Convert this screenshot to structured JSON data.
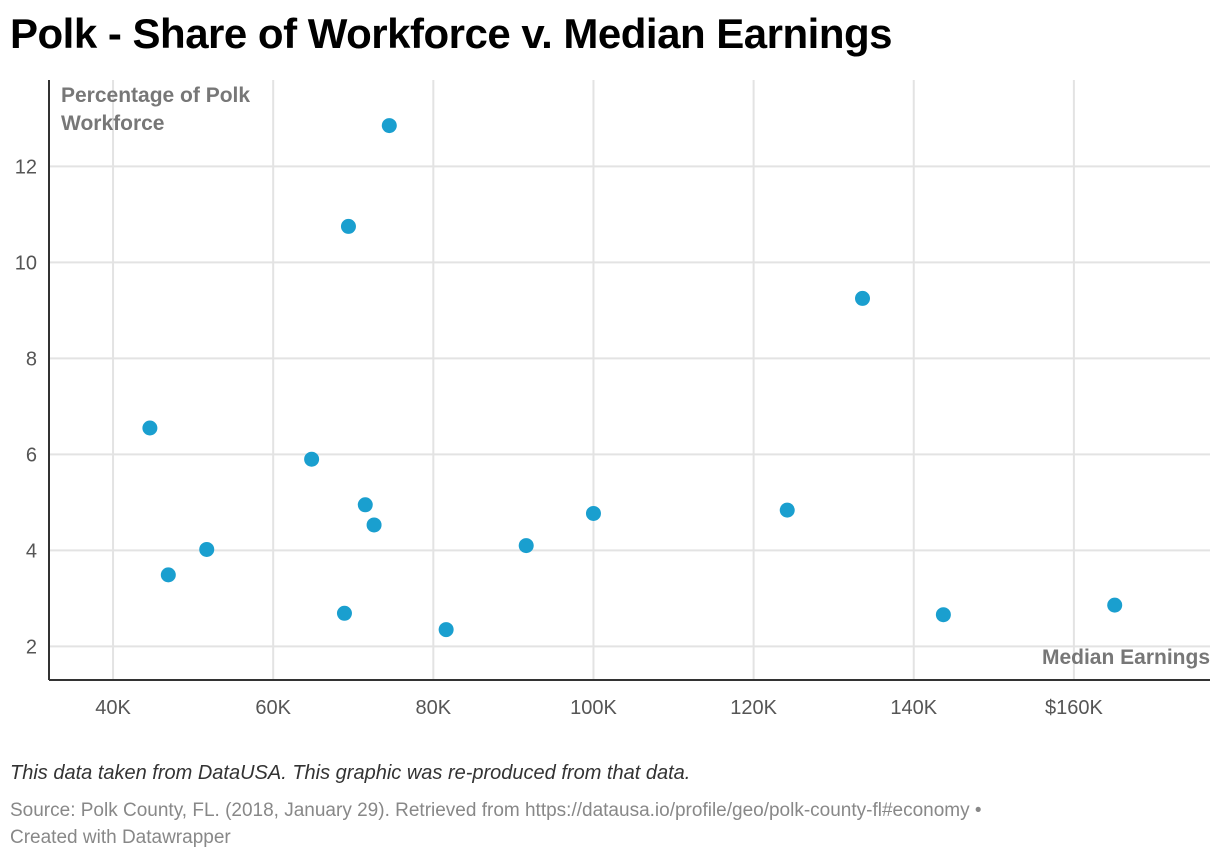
{
  "title": "Polk - Share of Workforce v. Median Earnings",
  "note": "This data taken from DataUSA. This graphic was re-produced from that data.",
  "source": {
    "line1": "Source: Polk County, FL. (2018, January 29). Retrieved from https://datausa.io/profile/geo/polk-county-fl#economy •",
    "line2": "Created with Datawrapper"
  },
  "colors": {
    "point": "#1a9fcf",
    "grid": "#e3e3e3",
    "axis": "#333333"
  },
  "chart_data": {
    "type": "scatter",
    "title": "Polk - Share of Workforce v. Median Earnings",
    "xlabel": "Median Earnings",
    "ylabel": "Percentage of Polk Workforce",
    "ylabel_lines": [
      "Percentage of Polk",
      "Workforce"
    ],
    "xlim": [
      32000,
      177000
    ],
    "ylim": [
      1.3,
      13.8
    ],
    "x_ticks": [
      40000,
      60000,
      80000,
      100000,
      120000,
      140000,
      160000
    ],
    "x_tick_labels": [
      "40K",
      "60K",
      "80K",
      "100K",
      "120K",
      "140K",
      "$160K"
    ],
    "y_ticks": [
      2,
      4,
      6,
      8,
      10,
      12
    ],
    "y_tick_labels": [
      "2",
      "4",
      "6",
      "8",
      "10",
      "12"
    ],
    "grid": true,
    "points": [
      {
        "x": 74500,
        "y": 12.85
      },
      {
        "x": 69400,
        "y": 10.75
      },
      {
        "x": 133600,
        "y": 9.25
      },
      {
        "x": 44600,
        "y": 6.55
      },
      {
        "x": 64800,
        "y": 5.9
      },
      {
        "x": 71500,
        "y": 4.95
      },
      {
        "x": 72600,
        "y": 4.53
      },
      {
        "x": 100000,
        "y": 4.77
      },
      {
        "x": 124200,
        "y": 4.84
      },
      {
        "x": 91600,
        "y": 4.1
      },
      {
        "x": 51700,
        "y": 4.02
      },
      {
        "x": 46900,
        "y": 3.49
      },
      {
        "x": 68900,
        "y": 2.69
      },
      {
        "x": 81600,
        "y": 2.35
      },
      {
        "x": 143700,
        "y": 2.66
      },
      {
        "x": 165100,
        "y": 2.86
      }
    ]
  }
}
